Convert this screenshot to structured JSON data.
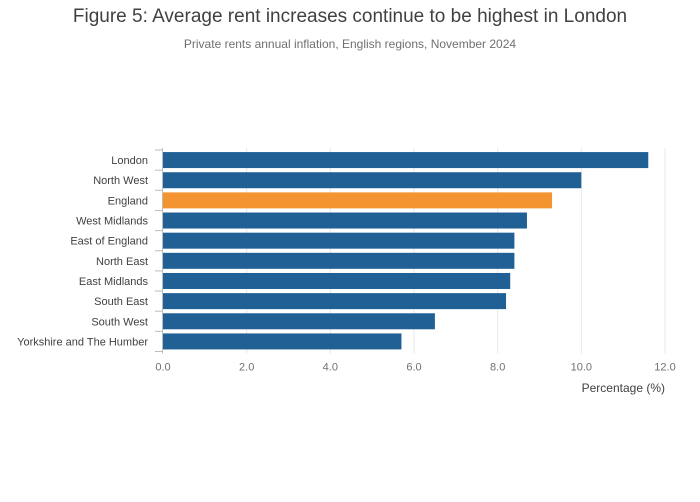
{
  "chart_data": {
    "type": "bar",
    "orientation": "horizontal",
    "title": "Figure 5: Average rent increases continue to be highest in London",
    "subtitle": "Private rents annual inflation, English regions, November 2024",
    "xlabel": "Percentage (%)",
    "ylabel": "",
    "xlim": [
      0,
      12
    ],
    "x_ticks": [
      "0.0",
      "2.0",
      "4.0",
      "6.0",
      "8.0",
      "10.0",
      "12.0"
    ],
    "grid": true,
    "categories": [
      "London",
      "North West",
      "England",
      "West Midlands",
      "East of England",
      "North East",
      "East Midlands",
      "South East",
      "South West",
      "Yorkshire and The Humber"
    ],
    "values": [
      11.6,
      10.0,
      9.3,
      8.7,
      8.4,
      8.4,
      8.3,
      8.2,
      6.5,
      5.7
    ],
    "colors": {
      "default_bar": "#206095",
      "highlight_bar": "#f39431",
      "grid": "#e8e8e8",
      "axis": "#bcbcbd"
    },
    "highlight_category": "England"
  }
}
